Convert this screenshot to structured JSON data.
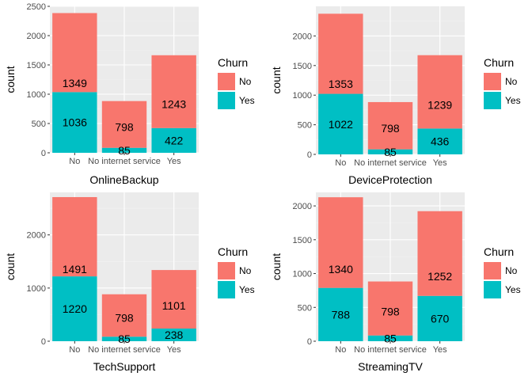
{
  "chart_data": [
    {
      "type": "bar",
      "stacked": true,
      "xlabel": "OnlineBackup",
      "ylabel": "count",
      "categories": [
        "No",
        "No internet service",
        "Yes"
      ],
      "series": [
        {
          "name": "No",
          "values": [
            1349,
            798,
            1243
          ]
        },
        {
          "name": "Yes",
          "values": [
            1036,
            85,
            422
          ]
        }
      ],
      "ylim": [
        0,
        2500
      ],
      "yticks": [
        0,
        500,
        1000,
        1500,
        2000,
        2500
      ],
      "grid": true,
      "legend": {
        "title": "Churn",
        "placement": "right"
      }
    },
    {
      "type": "bar",
      "stacked": true,
      "xlabel": "DeviceProtection",
      "ylabel": "count",
      "categories": [
        "No",
        "No internet service",
        "Yes"
      ],
      "series": [
        {
          "name": "No",
          "values": [
            1353,
            798,
            1239
          ]
        },
        {
          "name": "Yes",
          "values": [
            1022,
            85,
            436
          ]
        }
      ],
      "ylim": [
        0,
        2500
      ],
      "yticks": [
        0,
        500,
        1000,
        1500,
        2000
      ],
      "grid": true,
      "legend": {
        "title": "Churn",
        "placement": "right"
      }
    },
    {
      "type": "bar",
      "stacked": true,
      "xlabel": "TechSupport",
      "ylabel": "count",
      "categories": [
        "No",
        "No internet service",
        "Yes"
      ],
      "series": [
        {
          "name": "No",
          "values": [
            1491,
            798,
            1101
          ]
        },
        {
          "name": "Yes",
          "values": [
            1220,
            85,
            238
          ]
        }
      ],
      "ylim": [
        0,
        2800
      ],
      "yticks": [
        0,
        1000,
        2000
      ],
      "grid": true,
      "legend": {
        "title": "Churn",
        "placement": "right"
      }
    },
    {
      "type": "bar",
      "stacked": true,
      "xlabel": "StreamingTV",
      "ylabel": "count",
      "categories": [
        "No",
        "No internet service",
        "Yes"
      ],
      "series": [
        {
          "name": "No",
          "values": [
            1340,
            798,
            1252
          ]
        },
        {
          "name": "Yes",
          "values": [
            788,
            85,
            670
          ]
        }
      ],
      "ylim": [
        0,
        2200
      ],
      "yticks": [
        0,
        500,
        1000,
        1500,
        2000
      ],
      "grid": true,
      "legend": {
        "title": "Churn",
        "placement": "right"
      }
    }
  ],
  "colors": {
    "No": "#F8766D",
    "Yes": "#00BFC4",
    "panel_bg": "#EBEBEB",
    "grid_major": "#FFFFFF",
    "grid_minor": "#F2F2F2"
  }
}
